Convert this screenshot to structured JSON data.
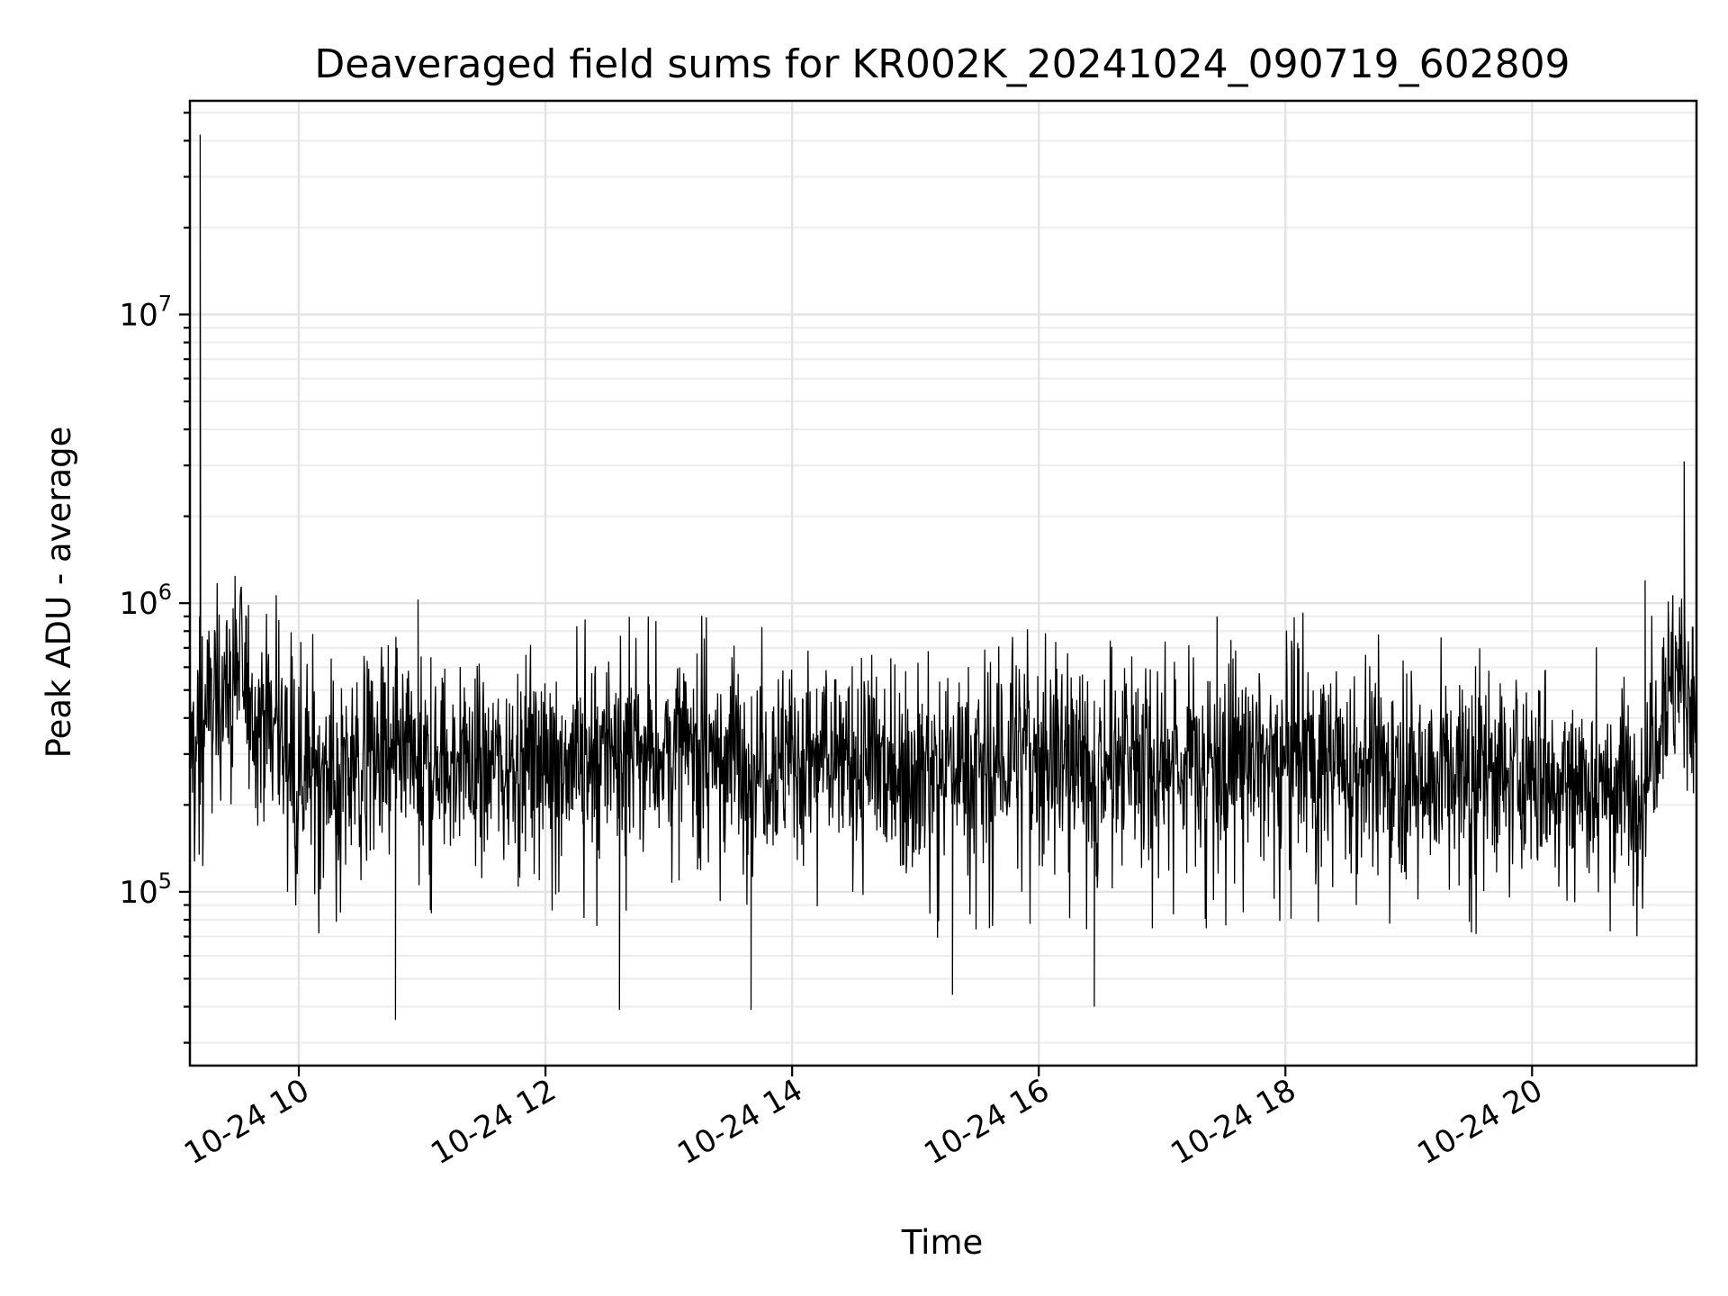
{
  "chart_data": {
    "type": "line",
    "title": "Deaveraged field sums for KR002K_20241024_090719_602809",
    "xlabel": "Time",
    "ylabel": "Peak ADU - average",
    "y_scale": "log",
    "xlim": [
      "2024-10-24 09:07",
      "2024-10-24 21:20"
    ],
    "ylim": [
      25000,
      55000000
    ],
    "grid": true,
    "x_ticks": [
      {
        "value": "2024-10-24 10:00",
        "label": "10-24 10"
      },
      {
        "value": "2024-10-24 12:00",
        "label": "10-24 12"
      },
      {
        "value": "2024-10-24 14:00",
        "label": "10-24 14"
      },
      {
        "value": "2024-10-24 16:00",
        "label": "10-24 16"
      },
      {
        "value": "2024-10-24 18:00",
        "label": "10-24 18"
      },
      {
        "value": "2024-10-24 20:00",
        "label": "10-24 20"
      }
    ],
    "y_ticks": [
      {
        "value": 100000,
        "base": "10",
        "exp": "5"
      },
      {
        "value": 1000000,
        "base": "10",
        "exp": "6"
      },
      {
        "value": 10000000,
        "base": "10",
        "exp": "7"
      }
    ],
    "series": [
      {
        "color": "#000000",
        "x": [
          "2024-10-24 09:07",
          "2024-10-24 09:15",
          "2024-10-24 09:30",
          "2024-10-24 09:40",
          "2024-10-24 10:00",
          "2024-10-24 10:30",
          "2024-10-24 11:00",
          "2024-10-24 11:30",
          "2024-10-24 12:00",
          "2024-10-24 12:30",
          "2024-10-24 13:00",
          "2024-10-24 13:30",
          "2024-10-24 14:00",
          "2024-10-24 14:30",
          "2024-10-24 15:00",
          "2024-10-24 15:30",
          "2024-10-24 16:00",
          "2024-10-24 16:30",
          "2024-10-24 17:00",
          "2024-10-24 17:30",
          "2024-10-24 18:00",
          "2024-10-24 18:30",
          "2024-10-24 19:00",
          "2024-10-24 19:30",
          "2024-10-24 20:00",
          "2024-10-24 20:30",
          "2024-10-24 20:54",
          "2024-10-24 21:05",
          "2024-10-24 21:15",
          "2024-10-24 21:20"
        ],
        "y": [
          300000,
          420000,
          600000,
          450000,
          280000,
          260000,
          270000,
          280000,
          290000,
          300000,
          310000,
          300000,
          290000,
          280000,
          270000,
          280000,
          300000,
          280000,
          290000,
          300000,
          290000,
          280000,
          270000,
          260000,
          250000,
          240000,
          230000,
          550000,
          500000,
          520000
        ],
        "spikes": [
          {
            "x": "2024-10-24 09:12",
            "y": 42000000
          },
          {
            "x": "2024-10-24 09:29",
            "y": 1150000
          },
          {
            "x": "2024-10-24 10:58",
            "y": 1030000
          },
          {
            "x": "2024-10-24 20:55",
            "y": 1200000
          },
          {
            "x": "2024-10-24 21:14",
            "y": 3100000
          }
        ],
        "dips": [
          {
            "x": "2024-10-24 10:47",
            "y": 36000
          },
          {
            "x": "2024-10-24 12:36",
            "y": 39000
          },
          {
            "x": "2024-10-24 13:40",
            "y": 39000
          },
          {
            "x": "2024-10-24 16:27",
            "y": 40000
          },
          {
            "x": "2024-10-24 15:18",
            "y": 44000
          }
        ]
      }
    ]
  }
}
